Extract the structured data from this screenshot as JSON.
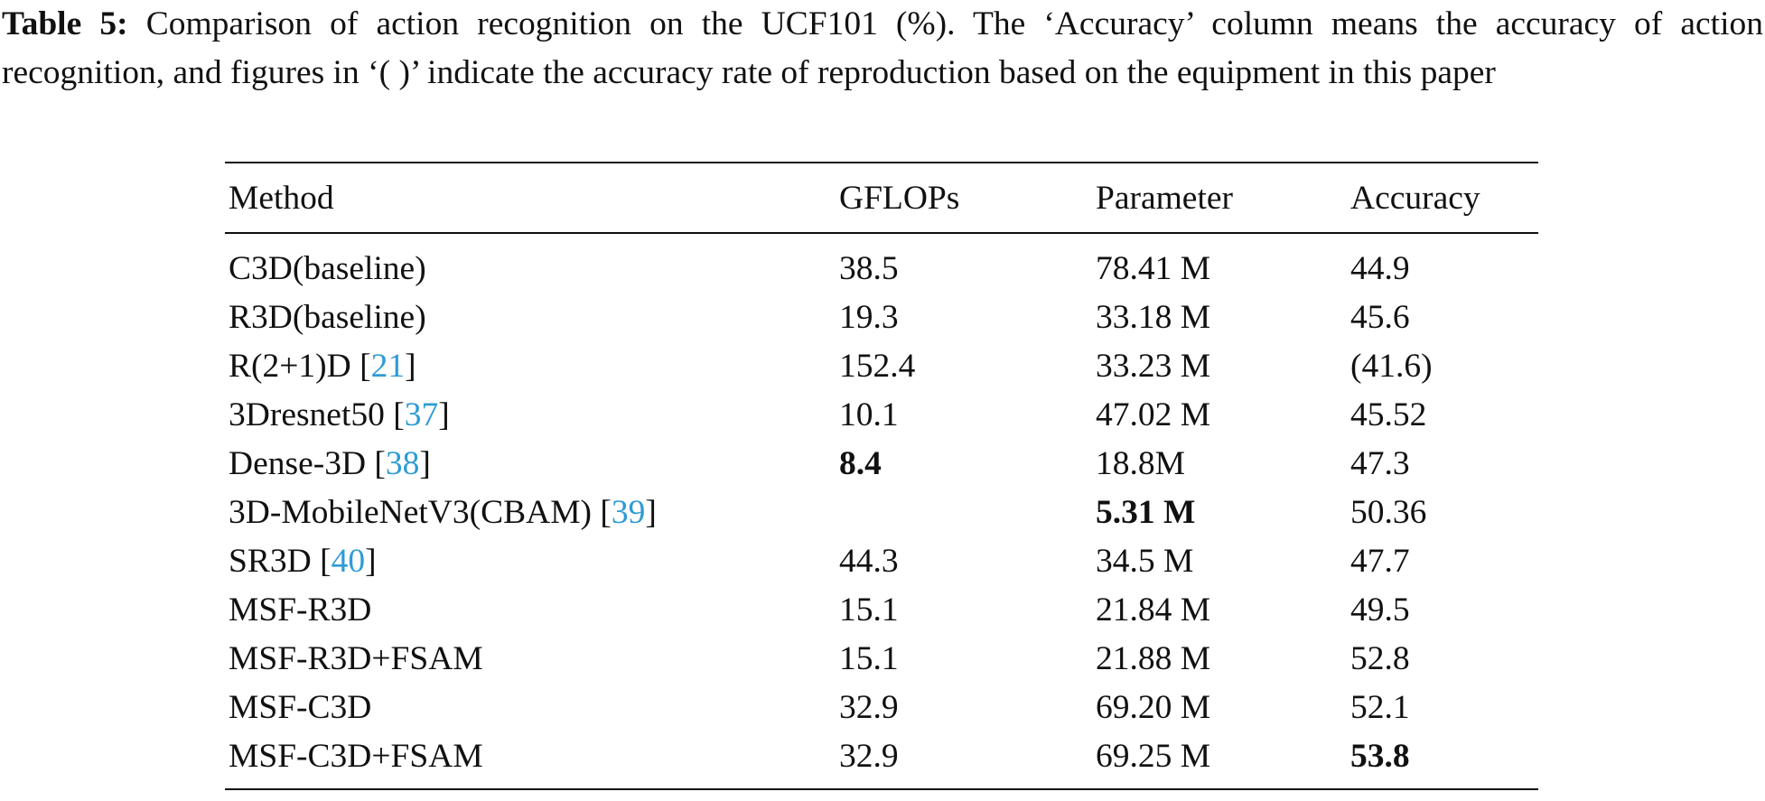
{
  "caption": {
    "label": "Table 5:",
    "text": "Comparison of action recognition on the UCF101 (%). The ‘Accuracy’ column means the accuracy of action recognition, and figures in ‘( )’ indicate the accuracy rate of reproduction based on the equipment in this paper"
  },
  "table": {
    "columns": [
      "Method",
      "GFLOPs",
      "Parameter",
      "Accuracy"
    ],
    "rows": [
      {
        "cells": [
          [
            "C3D(baseline)"
          ],
          "38.5",
          "78.41 M",
          "44.9"
        ]
      },
      {
        "cells": [
          [
            "R3D(baseline)"
          ],
          "19.3",
          "33.18 M",
          "45.6"
        ]
      },
      {
        "cells": [
          [
            "R(2+1)D [",
            "21",
            "]"
          ],
          "152.4",
          "33.23 M",
          "(41.6)"
        ]
      },
      {
        "cells": [
          [
            "3Dresnet50 [",
            "37",
            "]"
          ],
          "10.1",
          "47.02 M",
          "45.52"
        ]
      },
      {
        "cells": [
          [
            "Dense-3D [",
            "38",
            "]"
          ],
          "8.4",
          "18.8M",
          "47.3"
        ],
        "bold": 1
      },
      {
        "cells": [
          [
            "3D-MobileNetV3(CBAM) [",
            "39",
            "]"
          ],
          null,
          "5.31 M",
          "50.36"
        ],
        "bold": 2
      },
      {
        "cells": [
          [
            "SR3D [",
            "40",
            "]"
          ],
          "44.3",
          "34.5 M",
          "47.7"
        ]
      },
      {
        "cells": [
          [
            "MSF-R3D"
          ],
          "15.1",
          "21.84 M",
          "49.5"
        ]
      },
      {
        "cells": [
          [
            "MSF-R3D+FSAM"
          ],
          "15.1",
          "21.88 M",
          "52.8"
        ]
      },
      {
        "cells": [
          [
            "MSF-C3D"
          ],
          "32.9",
          "69.20 M",
          "52.1"
        ]
      },
      {
        "cells": [
          [
            "MSF-C3D+FSAM"
          ],
          "32.9",
          "69.25 M",
          "53.8"
        ],
        "bold": 3
      }
    ]
  }
}
